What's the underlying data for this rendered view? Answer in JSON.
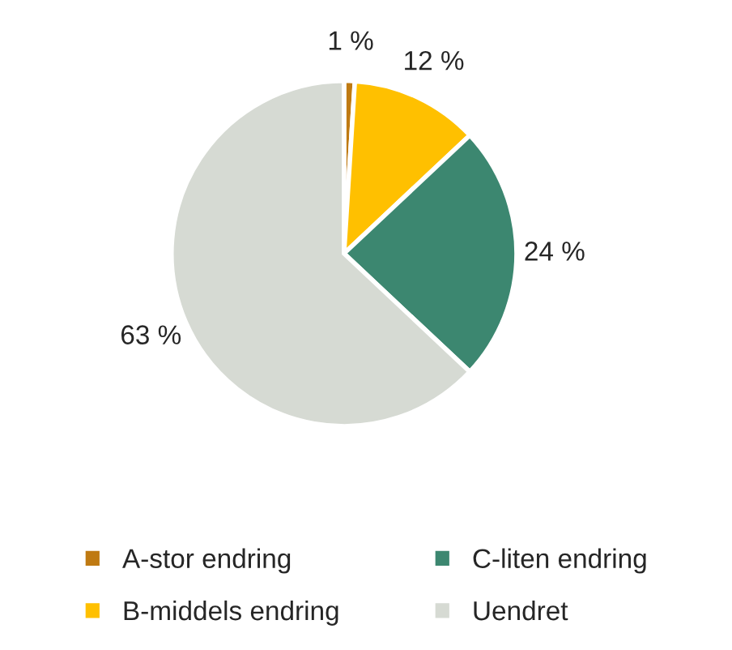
{
  "chart_data": {
    "type": "pie",
    "categories": [
      "A-stor endring",
      "B-middels endring",
      "C-liten endring",
      "Uendret"
    ],
    "values": [
      1,
      12,
      24,
      63
    ],
    "value_labels": [
      "1 %",
      "12 %",
      "24 %",
      "63 %"
    ],
    "colors": [
      "#bf7a12",
      "#ffc000",
      "#3c8770",
      "#d6dad3"
    ],
    "legend": "bottom"
  }
}
